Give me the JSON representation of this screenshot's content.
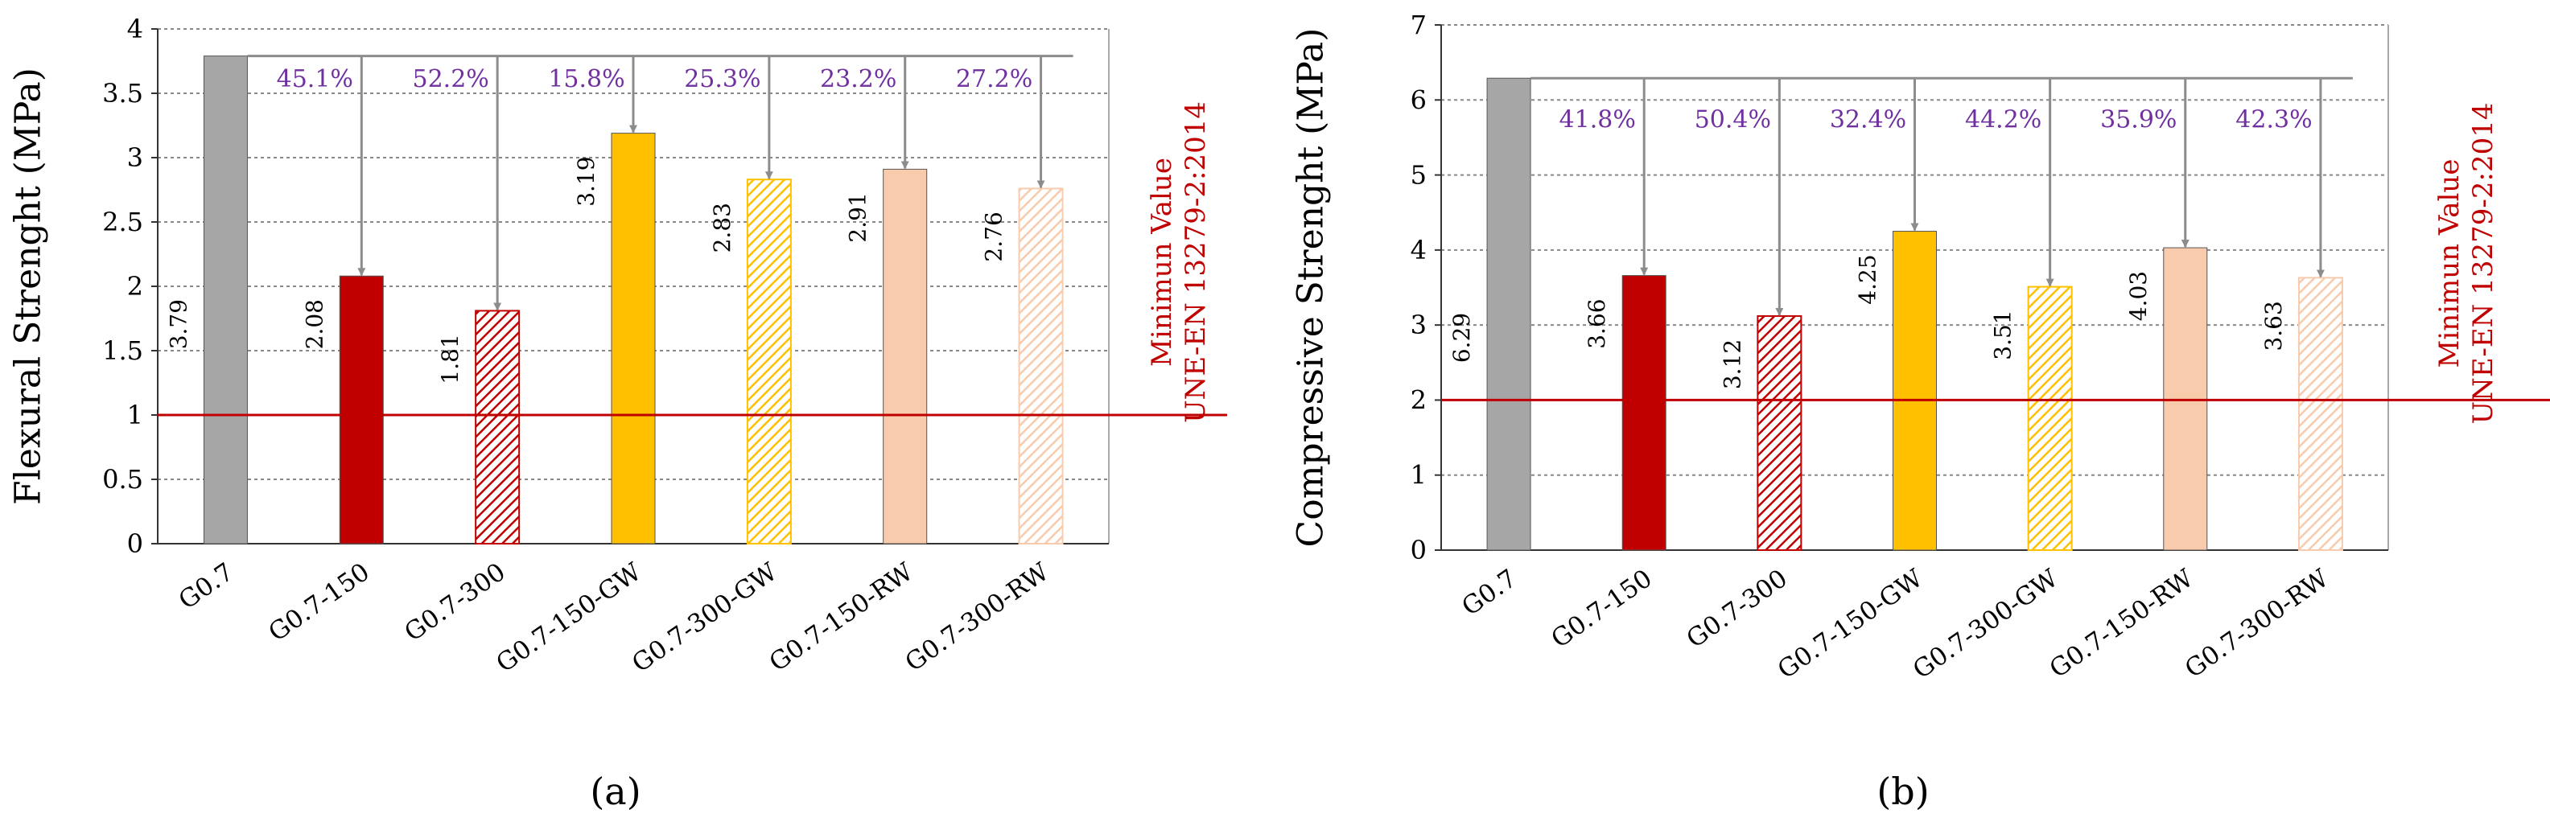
{
  "colors": {
    "reference": "#a6a6a6",
    "red": "#c00000",
    "yellow": "#ffc000",
    "peach": "#f8cbad",
    "percent_text": "#7030a0",
    "arrow": "#8c8c8c",
    "min_line": "#c00000",
    "axis": "#333333"
  },
  "chart_data": [
    {
      "type": "bar",
      "panel_label": "(a)",
      "ylabel": "Flexural Strenght (MPa)",
      "ylim": [
        0,
        4
      ],
      "yticks": [
        "0",
        "0.5",
        "1",
        "1.5",
        "2",
        "2.5",
        "3",
        "3.5",
        "4"
      ],
      "ytick_values": [
        0,
        0.5,
        1,
        1.5,
        2,
        2.5,
        3,
        3.5,
        4
      ],
      "categories": [
        "G0.7",
        "G0.7-150",
        "G0.7-300",
        "G0.7-150-GW",
        "G0.7-300-GW",
        "G0.7-150-RW",
        "G0.7-300-RW"
      ],
      "values": [
        3.79,
        2.08,
        1.81,
        3.19,
        2.83,
        2.91,
        2.76
      ],
      "value_labels": [
        "3.79",
        "2.08",
        "1.81",
        "3.19",
        "2.83",
        "2.91",
        "2.76"
      ],
      "fills": [
        "reference",
        "red",
        "red",
        "yellow",
        "yellow",
        "peach",
        "peach"
      ],
      "hatched": [
        false,
        false,
        true,
        false,
        true,
        false,
        true
      ],
      "reductions": [
        "",
        "45.1%",
        "52.2%",
        "15.8%",
        "25.3%",
        "23.2%",
        "27.2%"
      ],
      "reduction_label_y": 3.62,
      "minimum_value": 1,
      "minimum_label_lines": [
        "Minimun Value",
        "UNE-EN 13279-2:2014"
      ],
      "grid": true
    },
    {
      "type": "bar",
      "panel_label": "(b)",
      "ylabel": "Compressive Strenght (MPa)",
      "ylim": [
        0,
        7
      ],
      "yticks": [
        "0",
        "1",
        "2",
        "3",
        "4",
        "5",
        "6",
        "7"
      ],
      "ytick_values": [
        0,
        1,
        2,
        3,
        4,
        5,
        6,
        7
      ],
      "categories": [
        "G0.7",
        "G0.7-150",
        "G0.7-300",
        "G0.7-150-GW",
        "G0.7-300-GW",
        "G0.7-150-RW",
        "G0.7-300-RW"
      ],
      "values": [
        6.29,
        3.66,
        3.12,
        4.25,
        3.51,
        4.03,
        3.63
      ],
      "value_labels": [
        "6.29",
        "3.66",
        "3.12",
        "4.25",
        "3.51",
        "4.03",
        "3.63"
      ],
      "fills": [
        "reference",
        "red",
        "red",
        "yellow",
        "yellow",
        "peach",
        "peach"
      ],
      "hatched": [
        false,
        false,
        true,
        false,
        true,
        false,
        true
      ],
      "reductions": [
        "",
        "41.8%",
        "50.4%",
        "32.4%",
        "44.2%",
        "35.9%",
        "42.3%"
      ],
      "reduction_label_y": 5.75,
      "minimum_value": 2,
      "minimum_label_lines": [
        "Minimun Value",
        "UNE-EN 13279-2:2014"
      ],
      "grid": true
    }
  ]
}
